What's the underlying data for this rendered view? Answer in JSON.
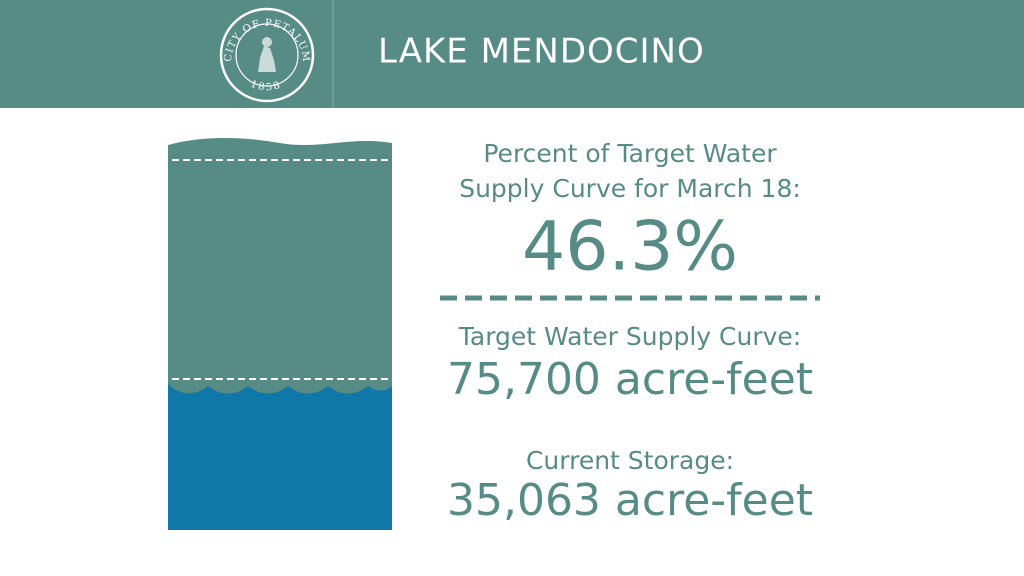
{
  "header": {
    "title": "LAKE MENDOCINO",
    "logo": {
      "name": "CITY OF PETALUMA",
      "year": "1858"
    }
  },
  "stats": {
    "percent": {
      "label_lines": [
        "Percent of Target Water",
        "Supply Curve for March 18:"
      ],
      "value": "46.3%"
    },
    "target": {
      "label": "Target Water Supply Curve:",
      "value": "75,700 acre-feet"
    },
    "current": {
      "label": "Current Storage:",
      "value": "35,063 acre-feet"
    }
  }
}
